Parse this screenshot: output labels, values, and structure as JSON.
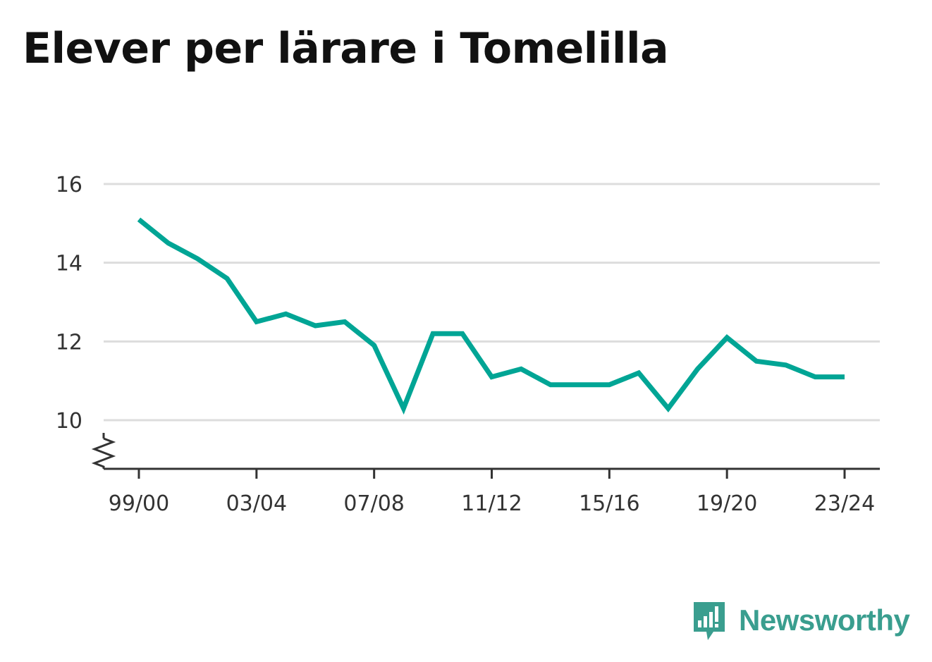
{
  "title": "Elever per lärare i Tomelilla",
  "brand": {
    "name": "Newsworthy",
    "color": "#3a9e8f"
  },
  "chart_data": {
    "type": "line",
    "x": [
      "99/00",
      "00/01",
      "01/02",
      "02/03",
      "03/04",
      "04/05",
      "05/06",
      "06/07",
      "07/08",
      "08/09",
      "09/10",
      "10/11",
      "11/12",
      "12/13",
      "13/14",
      "14/15",
      "15/16",
      "16/17",
      "17/18",
      "18/19",
      "19/20",
      "20/21",
      "21/22",
      "22/23",
      "23/24"
    ],
    "x_tick_labels": [
      "99/00",
      "03/04",
      "07/08",
      "11/12",
      "15/16",
      "19/20",
      "23/24"
    ],
    "series": [
      {
        "color": "#00a595",
        "values": [
          15.1,
          14.5,
          14.1,
          13.6,
          12.5,
          12.7,
          12.4,
          12.5,
          11.9,
          10.3,
          12.2,
          12.2,
          11.1,
          11.3,
          10.9,
          10.9,
          10.9,
          11.2,
          10.3,
          11.3,
          12.1,
          11.5,
          11.4,
          11.1,
          11.1
        ]
      }
    ],
    "y_ticks": [
      10,
      12,
      14,
      16
    ],
    "ylim": [
      10,
      16
    ],
    "y_axis_break": true,
    "grid": true,
    "xlabel": "",
    "ylabel": ""
  }
}
